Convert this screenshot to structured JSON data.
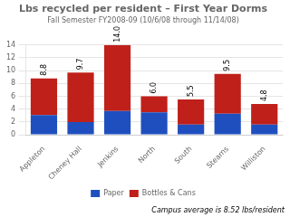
{
  "chart_data": {
    "type": "bar",
    "title": "Lbs recycled per resident – First Year Dorms",
    "subtitle": "Fall Semester FY2008-09 (10/6/08 through 11/14/08)",
    "categories": [
      "Appleton",
      "Cheney Hall",
      "Jenkins",
      "North",
      "South",
      "Stearns",
      "Williston"
    ],
    "series": [
      {
        "name": "Paper",
        "color": "#1F4FBF",
        "values": [
          3.1,
          2.0,
          3.7,
          3.5,
          1.6,
          3.3,
          1.6
        ]
      },
      {
        "name": "Bottles & Cans",
        "color": "#C0201A",
        "values": [
          5.7,
          7.7,
          10.3,
          2.5,
          3.9,
          6.2,
          3.2
        ]
      }
    ],
    "stacked": true,
    "totals": [
      8.8,
      9.7,
      14.0,
      6.0,
      5.5,
      9.5,
      4.8
    ],
    "total_labels": [
      "8.8",
      "9.7",
      "14.0",
      "6.0",
      "5.5",
      "9.5",
      "4.8"
    ],
    "ylim": [
      0,
      14
    ],
    "yticks": [
      0,
      2,
      4,
      6,
      8,
      10,
      12,
      14
    ],
    "grid": true,
    "legend": "bottom",
    "annotation": "Campus average is 8.52 lbs/resident"
  }
}
